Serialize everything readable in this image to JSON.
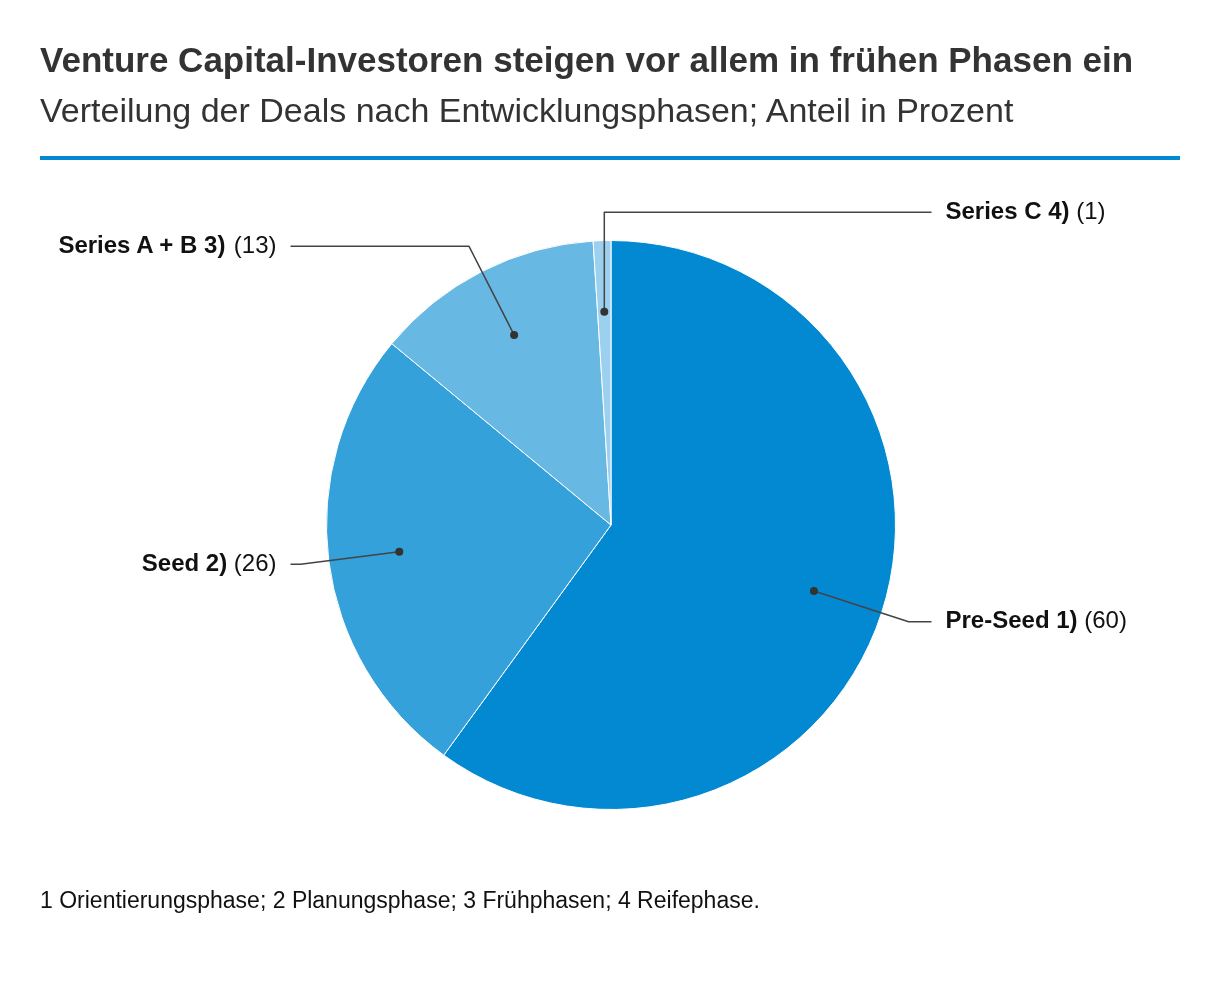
{
  "chart_data": {
    "type": "pie",
    "title": "Venture Capital-Investoren steigen vor allem in frühen Phasen ein",
    "subtitle": "Verteilung der Deals nach Entwicklungsphasen; Anteil in Prozent",
    "categories": [
      "Pre-Seed 1)",
      "Seed 2)",
      "Series A + B 3)",
      "Series C 4)"
    ],
    "values": [
      60,
      26,
      13,
      1
    ],
    "colors": [
      "#0389d2",
      "#35a1da",
      "#67b8e3",
      "#9bd0ef"
    ],
    "value_labels": [
      "(60)",
      "(26)",
      "(13)",
      "(1)"
    ],
    "annotations": [
      "1 Orientierungsphase; 2 Planungsphase; 3 Frühphasen; 4 Reifephase."
    ]
  }
}
